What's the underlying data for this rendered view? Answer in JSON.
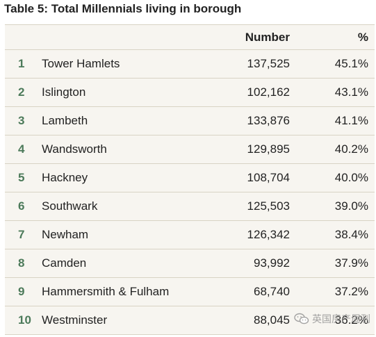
{
  "title": "Table 5: Total Millennials living in borough",
  "columns": {
    "number": "Number",
    "percent": "%"
  },
  "rows": [
    {
      "rank": "1",
      "borough": "Tower Hamlets",
      "number": "137,525",
      "percent": "45.1%"
    },
    {
      "rank": "2",
      "borough": "Islington",
      "number": "102,162",
      "percent": "43.1%"
    },
    {
      "rank": "3",
      "borough": "Lambeth",
      "number": "133,876",
      "percent": "41.1%"
    },
    {
      "rank": "4",
      "borough": "Wandsworth",
      "number": "129,895",
      "percent": "40.2%"
    },
    {
      "rank": "5",
      "borough": "Hackney",
      "number": "108,704",
      "percent": "40.0%"
    },
    {
      "rank": "6",
      "borough": "Southwark",
      "number": "125,503",
      "percent": "39.0%"
    },
    {
      "rank": "7",
      "borough": "Newham",
      "number": "126,342",
      "percent": "38.4%"
    },
    {
      "rank": "8",
      "borough": "Camden",
      "number": "93,992",
      "percent": "37.9%"
    },
    {
      "rank": "9",
      "borough": "Hammersmith & Fulham",
      "number": "68,740",
      "percent": "37.2%"
    },
    {
      "rank": "10",
      "borough": "Westminster",
      "number": "88,045",
      "percent": "36.2%"
    }
  ],
  "watermark": {
    "text": "英国房产周刊",
    "icon": "wechat-icon"
  },
  "colors": {
    "rank": "#4c7a5a",
    "row_background": "#f7f5f0",
    "divider": "#d8d3c4"
  }
}
